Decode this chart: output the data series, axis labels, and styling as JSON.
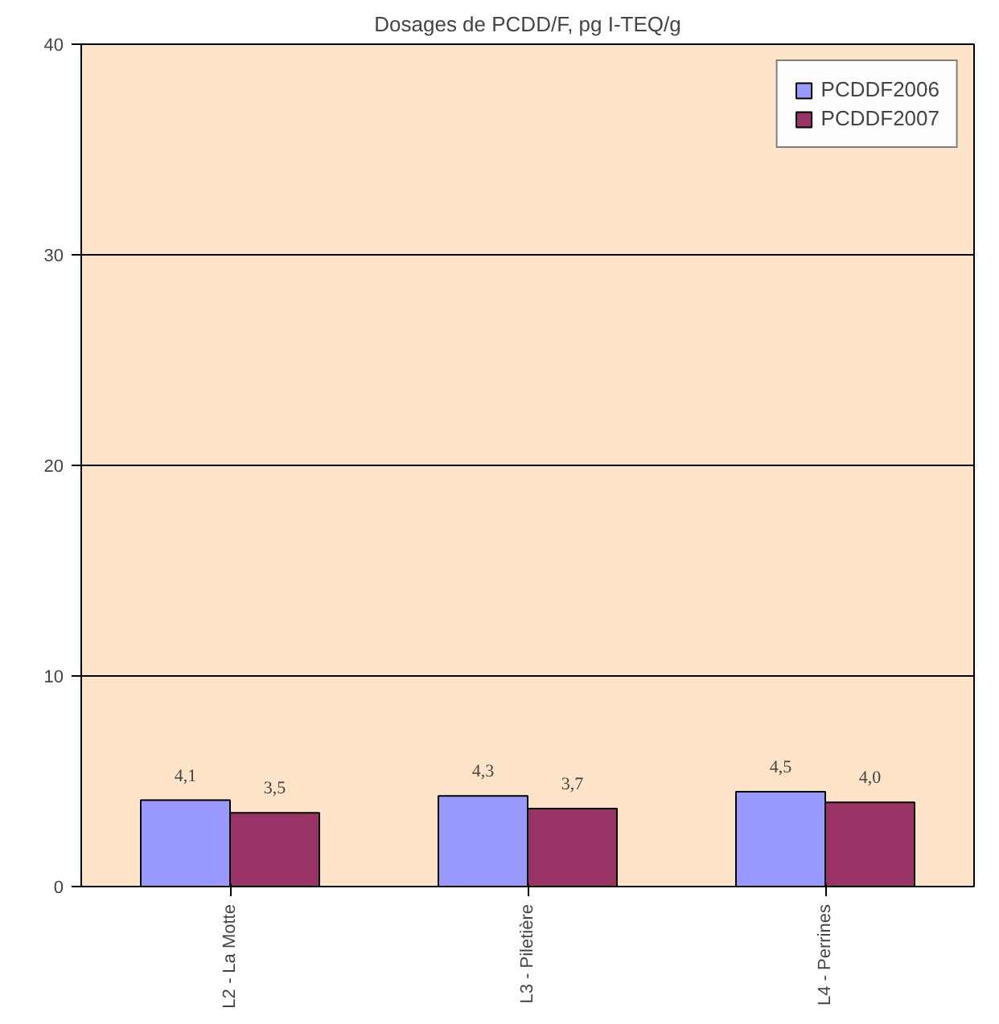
{
  "chart_data": {
    "type": "bar",
    "title": "Dosages de PCDD/F, pg I-TEQ/g",
    "categories": [
      "L2 - La Motte",
      "L3 - Piletière",
      "L4 - Perrines"
    ],
    "series": [
      {
        "name": "PCDDF2006",
        "color": "#9999ff",
        "values": [
          4.1,
          4.3,
          4.5
        ],
        "value_labels": [
          "4,1",
          "4,3",
          "4,5"
        ]
      },
      {
        "name": "PCDDF2007",
        "color": "#993366",
        "values": [
          3.5,
          3.7,
          4.0
        ],
        "value_labels": [
          "3,5",
          "3,7",
          "4,0"
        ]
      }
    ],
    "ylim": [
      0,
      40
    ],
    "yticks": [
      0,
      10,
      20,
      30,
      40
    ],
    "grid": "y",
    "legend": "top right"
  }
}
